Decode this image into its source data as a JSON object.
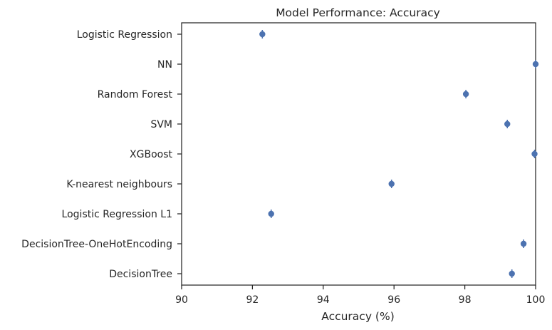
{
  "chart_data": {
    "type": "scatter",
    "title": "Model Performance: Accuracy",
    "xlabel": "Accuracy (%)",
    "ylabel": "",
    "xlim": [
      90,
      100
    ],
    "xticks": [
      "90",
      "92",
      "94",
      "96",
      "98",
      "100"
    ],
    "grid": false,
    "legend": "none",
    "marker_color": "#4c72b0",
    "categories": [
      "Logistic Regression",
      "NN",
      "Random Forest",
      "SVM",
      "XGBoost",
      "K-nearest neighbours",
      "Logistic Regression L1",
      "DecisionTree-OneHotEncoding",
      "DecisionTree"
    ],
    "values": [
      92.28,
      100.0,
      98.03,
      99.2,
      99.97,
      95.93,
      92.53,
      99.66,
      99.33
    ],
    "errors": [
      0.08,
      0.05,
      0.09,
      0.09,
      0.06,
      0.1,
      0.08,
      0.08,
      0.08
    ]
  }
}
